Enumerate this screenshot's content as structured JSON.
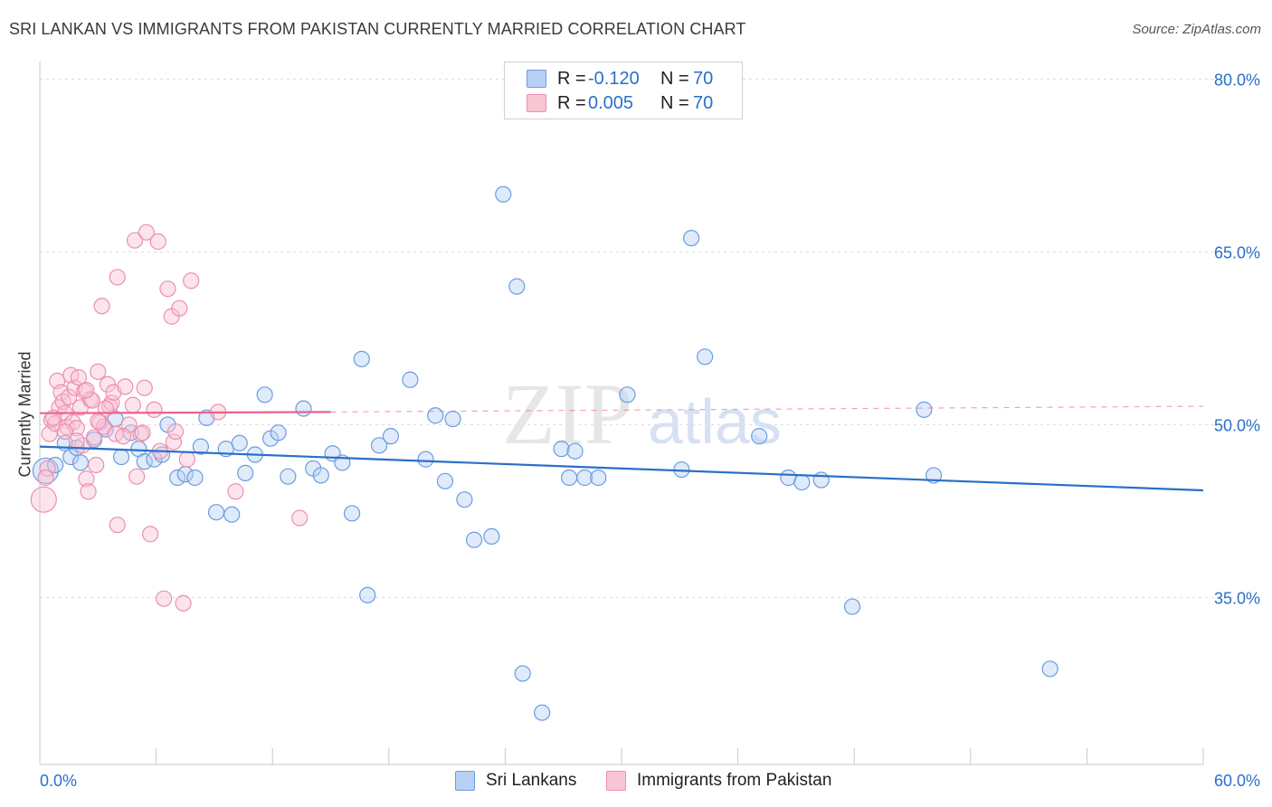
{
  "title": "SRI LANKAN VS IMMIGRANTS FROM PAKISTAN CURRENTLY MARRIED CORRELATION CHART",
  "source": "Source: ZipAtlas.com",
  "watermark": {
    "zip": "ZIP",
    "atlas": "atlas"
  },
  "legend": {
    "rows": [
      {
        "r_label": "R =",
        "r_value": "-0.120",
        "n_label": "N =",
        "n_value": "70",
        "fill": "#b8d0f4",
        "stroke": "#6a9de0"
      },
      {
        "r_label": "R =",
        "r_value": "0.005",
        "n_label": "N =",
        "n_value": "70",
        "fill": "#f9c4d4",
        "stroke": "#ec8fae"
      }
    ]
  },
  "chart_data": {
    "type": "scatter",
    "title": "SRI LANKAN VS IMMIGRANTS FROM PAKISTAN CURRENTLY MARRIED CORRELATION CHART",
    "xlabel": "",
    "ylabel": "Currently Married",
    "xlim": [
      0,
      60
    ],
    "ylim": [
      20.5,
      82
    ],
    "x_tick_labels": [
      "0.0%",
      "60.0%"
    ],
    "y_ticks": [
      35,
      50,
      65,
      80
    ],
    "y_tick_labels": [
      "35.0%",
      "50.0%",
      "65.0%",
      "80.0%"
    ],
    "grid": true,
    "series": [
      {
        "name": "Sri Lankans",
        "color": "#6a9de0",
        "fill": "#b8d0f4",
        "trend": {
          "x": [
            0,
            60
          ],
          "y": [
            48.1,
            44.3
          ],
          "color": "#2a6fc9"
        },
        "points": [
          [
            0.3,
            46.0
          ],
          [
            0.8,
            46.5
          ],
          [
            1.3,
            48.4
          ],
          [
            1.6,
            47.2
          ],
          [
            1.9,
            48.0
          ],
          [
            2.1,
            46.7
          ],
          [
            2.8,
            48.7
          ],
          [
            3.4,
            49.6
          ],
          [
            3.9,
            50.5
          ],
          [
            4.2,
            47.2
          ],
          [
            4.7,
            49.3
          ],
          [
            5.1,
            47.9
          ],
          [
            5.4,
            46.8
          ],
          [
            5.9,
            47.0
          ],
          [
            6.3,
            47.4
          ],
          [
            6.6,
            50.0
          ],
          [
            7.1,
            45.4
          ],
          [
            7.5,
            45.7
          ],
          [
            8.0,
            45.4
          ],
          [
            8.3,
            48.1
          ],
          [
            8.6,
            50.6
          ],
          [
            9.1,
            42.4
          ],
          [
            9.6,
            47.9
          ],
          [
            9.9,
            42.2
          ],
          [
            10.3,
            48.4
          ],
          [
            10.6,
            45.8
          ],
          [
            11.1,
            47.4
          ],
          [
            11.6,
            52.6
          ],
          [
            11.9,
            48.8
          ],
          [
            12.3,
            49.3
          ],
          [
            12.8,
            45.5
          ],
          [
            13.6,
            51.4
          ],
          [
            14.1,
            46.2
          ],
          [
            14.5,
            45.6
          ],
          [
            15.1,
            47.5
          ],
          [
            15.6,
            46.7
          ],
          [
            16.1,
            42.3
          ],
          [
            16.6,
            55.7
          ],
          [
            16.9,
            35.2
          ],
          [
            17.5,
            48.2
          ],
          [
            18.1,
            49.0
          ],
          [
            19.1,
            53.9
          ],
          [
            19.9,
            47.0
          ],
          [
            20.4,
            50.8
          ],
          [
            20.9,
            45.1
          ],
          [
            21.3,
            50.5
          ],
          [
            21.9,
            43.5
          ],
          [
            22.4,
            40.0
          ],
          [
            23.3,
            40.3
          ],
          [
            23.9,
            70.0
          ],
          [
            24.6,
            62.0
          ],
          [
            24.9,
            28.4
          ],
          [
            25.9,
            25.0
          ],
          [
            26.9,
            47.9
          ],
          [
            27.3,
            45.4
          ],
          [
            27.6,
            47.7
          ],
          [
            28.1,
            45.4
          ],
          [
            28.8,
            45.4
          ],
          [
            30.3,
            52.6
          ],
          [
            33.1,
            46.1
          ],
          [
            33.6,
            66.2
          ],
          [
            34.3,
            55.9
          ],
          [
            37.1,
            49.0
          ],
          [
            38.6,
            45.4
          ],
          [
            39.3,
            45.0
          ],
          [
            40.3,
            45.2
          ],
          [
            41.9,
            34.2
          ],
          [
            45.6,
            51.3
          ],
          [
            46.1,
            45.6
          ],
          [
            52.1,
            28.8
          ]
        ]
      },
      {
        "name": "Immigrants from Pakistan",
        "color": "#ec8fae",
        "fill": "#f9c4d4",
        "trend": {
          "x": [
            0,
            15,
            60
          ],
          "y": [
            51.0,
            51.1,
            51.6
          ],
          "color": "#e8648f"
        },
        "points": [
          [
            0.2,
            43.5
          ],
          [
            0.4,
            46.2
          ],
          [
            0.5,
            49.2
          ],
          [
            0.6,
            50.4
          ],
          [
            0.8,
            50.1
          ],
          [
            0.9,
            53.8
          ],
          [
            1.0,
            51.5
          ],
          [
            1.1,
            52.8
          ],
          [
            1.2,
            52.0
          ],
          [
            1.3,
            51.0
          ],
          [
            1.4,
            49.8
          ],
          [
            1.5,
            52.4
          ],
          [
            1.6,
            54.3
          ],
          [
            1.7,
            50.2
          ],
          [
            1.8,
            53.2
          ],
          [
            1.9,
            49.7
          ],
          [
            2.0,
            54.1
          ],
          [
            2.1,
            51.5
          ],
          [
            2.2,
            48.2
          ],
          [
            2.3,
            52.9
          ],
          [
            2.4,
            45.3
          ],
          [
            2.5,
            44.2
          ],
          [
            2.6,
            52.2
          ],
          [
            2.8,
            48.9
          ],
          [
            2.9,
            46.5
          ],
          [
            3.0,
            54.6
          ],
          [
            3.1,
            50.2
          ],
          [
            3.2,
            60.3
          ],
          [
            3.3,
            49.8
          ],
          [
            3.5,
            53.5
          ],
          [
            3.6,
            51.6
          ],
          [
            3.7,
            51.9
          ],
          [
            3.8,
            52.8
          ],
          [
            3.9,
            49.2
          ],
          [
            4.0,
            62.8
          ],
          [
            4.0,
            41.3
          ],
          [
            4.4,
            53.3
          ],
          [
            4.6,
            50.0
          ],
          [
            4.9,
            66.0
          ],
          [
            5.0,
            45.5
          ],
          [
            5.2,
            49.2
          ],
          [
            5.4,
            53.2
          ],
          [
            5.5,
            66.7
          ],
          [
            5.7,
            40.5
          ],
          [
            5.9,
            51.3
          ],
          [
            6.2,
            47.7
          ],
          [
            6.4,
            34.9
          ],
          [
            6.6,
            61.8
          ],
          [
            6.8,
            59.4
          ],
          [
            6.9,
            48.5
          ],
          [
            7.0,
            49.4
          ],
          [
            7.2,
            60.1
          ],
          [
            7.4,
            34.5
          ],
          [
            7.6,
            47.0
          ],
          [
            7.8,
            62.5
          ],
          [
            9.2,
            51.1
          ],
          [
            10.1,
            44.2
          ],
          [
            13.4,
            41.9
          ],
          [
            0.3,
            45.4
          ],
          [
            1.3,
            49.4
          ],
          [
            2.7,
            52.1
          ],
          [
            3.4,
            51.4
          ],
          [
            4.3,
            49.0
          ],
          [
            6.1,
            65.9
          ],
          [
            0.7,
            50.6
          ],
          [
            1.9,
            48.6
          ],
          [
            3.0,
            50.3
          ],
          [
            4.8,
            51.7
          ],
          [
            2.4,
            53.0
          ],
          [
            5.3,
            49.3
          ]
        ]
      }
    ]
  },
  "bottom_legend": [
    "Sri Lankans",
    "Immigrants from Pakistan"
  ]
}
